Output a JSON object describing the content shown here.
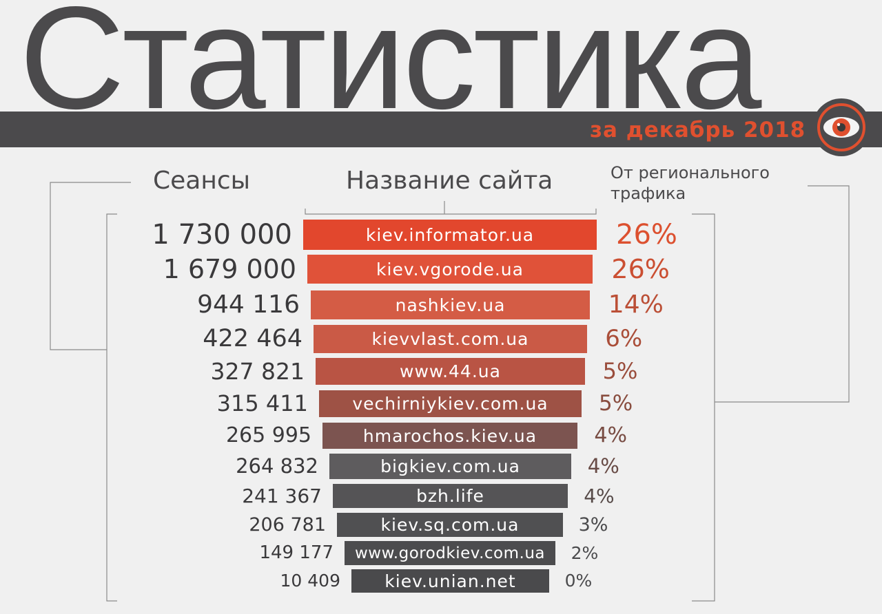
{
  "title": "Статистика",
  "subtitle": "за декабрь 2018",
  "headers": {
    "sessions": "Сеансы",
    "site": "Название сайта",
    "share": "От регионального трафика"
  },
  "colors": {
    "dark": "#4b4a4c",
    "accent": "#e0502f"
  },
  "logo_icon": "eye-lens-icon",
  "chart_data": {
    "type": "bar",
    "title": "Статистика",
    "subtitle": "за декабрь 2018",
    "categories": [
      "kiev.informator.ua",
      "kiev.vgorode.ua",
      "nashkiev.ua",
      "kievvlast.com.ua",
      "www.44.ua",
      "vechirniykiev.com.ua",
      "hmarochos.kiev.ua",
      "bigkiev.com.ua",
      "bzh.life",
      "kiev.sq.com.ua",
      "www.gorodkiev.com.ua",
      "kiev.unian.net"
    ],
    "series": [
      {
        "name": "Сеансы",
        "values": [
          1730000,
          1679000,
          944116,
          422464,
          327821,
          315411,
          265995,
          264832,
          241367,
          206781,
          149177,
          10409
        ]
      },
      {
        "name": "От регионального трафика",
        "values": [
          26,
          26,
          14,
          6,
          5,
          5,
          4,
          4,
          4,
          3,
          2,
          0
        ]
      }
    ],
    "rows": [
      {
        "site": "kiev.informator.ua",
        "sessions": "1 730 000",
        "share": "26%",
        "color": "#e2472d"
      },
      {
        "site": "kiev.vgorode.ua",
        "sessions": "1 679 000",
        "share": "26%",
        "color": "#e05239"
      },
      {
        "site": "nashkiev.ua",
        "sessions": "944 116",
        "share": "14%",
        "color": "#d45c45"
      },
      {
        "site": "kievvlast.com.ua",
        "sessions": "422 464",
        "share": "6%",
        "color": "#ca5a46"
      },
      {
        "site": "www.44.ua",
        "sessions": "327 821",
        "share": "5%",
        "color": "#b95444"
      },
      {
        "site": "vechirniykiev.com.ua",
        "sessions": "315 411",
        "share": "5%",
        "color": "#9e5245"
      },
      {
        "site": "hmarochos.kiev.ua",
        "sessions": "265 995",
        "share": "4%",
        "color": "#7c5450"
      },
      {
        "site": "bigkiev.com.ua",
        "sessions": "264 832",
        "share": "4%",
        "color": "#5e5c5e"
      },
      {
        "site": "bzh.life",
        "sessions": "241 367",
        "share": "4%",
        "color": "#555456"
      },
      {
        "site": "kiev.sq.com.ua",
        "sessions": "206 781",
        "share": "3%",
        "color": "#505052"
      },
      {
        "site": "www.gorodkiev.com.ua",
        "sessions": "149 177",
        "share": "2%",
        "color": "#4c4c4e"
      },
      {
        "site": "kiev.unian.net",
        "sessions": "10 409",
        "share": "0%",
        "color": "#4a4a4c"
      }
    ]
  }
}
